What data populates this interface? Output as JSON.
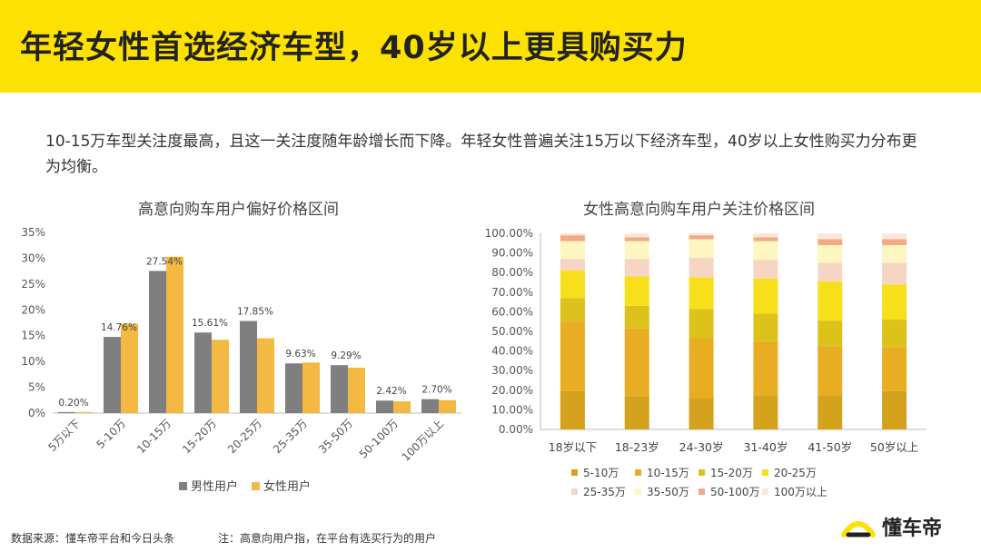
{
  "header": {
    "title": "年轻女性首选经济车型，40岁以上更具购买力"
  },
  "intro": "10-15万车型关注度最高，且这一关注度随年龄增长而下降。年轻女性普遍关注15万以下经济车型，40岁以上女性购买力分布更为均衡。",
  "footer": {
    "source": "数据来源：懂车帝平台和今日头条",
    "note": "注：高意向用户指，在平台有选买行为的用户"
  },
  "brand": {
    "name": "懂车帝"
  },
  "colors": {
    "male": "#7f7f7f",
    "female": "#f4b942",
    "stack": [
      "#d4a21c",
      "#e8ad22",
      "#dcc21a",
      "#f7df1c",
      "#f6d6c3",
      "#fef6c0",
      "#f2aa86",
      "#fce6da"
    ]
  },
  "chart_data": [
    {
      "type": "bar",
      "title": "高意向购车用户偏好价格区间",
      "categories": [
        "5万以下",
        "5-10万",
        "10-15万",
        "15-20万",
        "20-25万",
        "25-35万",
        "35-50万",
        "50-100万",
        "100万以上"
      ],
      "series": [
        {
          "name": "男性用户",
          "values": [
            0.2,
            14.76,
            27.54,
            15.61,
            17.85,
            9.63,
            9.29,
            2.42,
            2.7
          ],
          "labels": [
            "0.20%",
            "14.76%",
            "27.54%",
            "15.61%",
            "17.85%",
            "9.63%",
            "9.29%",
            "2.42%",
            "2.70%"
          ]
        },
        {
          "name": "女性用户",
          "values": [
            0.2,
            17.3,
            30.3,
            14.2,
            14.5,
            9.8,
            8.8,
            2.3,
            2.5
          ]
        }
      ],
      "yticks": [
        "0%",
        "5%",
        "10%",
        "15%",
        "20%",
        "25%",
        "30%",
        "35%"
      ],
      "ylim": [
        0,
        35
      ]
    },
    {
      "type": "bar",
      "stacked": true,
      "title": "女性高意向购车用户关注价格区间",
      "categories": [
        "18岁以下",
        "18-23岁",
        "24-30岁",
        "31-40岁",
        "41-50岁",
        "50岁以上"
      ],
      "series": [
        {
          "name": "5-10万",
          "values": [
            19.5,
            17,
            16,
            17.5,
            17.5,
            19.5
          ]
        },
        {
          "name": "10-15万",
          "values": [
            35.5,
            34.5,
            30.5,
            27.5,
            25,
            22.5
          ]
        },
        {
          "name": "15-20万",
          "values": [
            12,
            11.5,
            15,
            14,
            13,
            14
          ]
        },
        {
          "name": "20-25万",
          "values": [
            14,
            15,
            16,
            18,
            20,
            18
          ]
        },
        {
          "name": "25-35万",
          "values": [
            6,
            9,
            10,
            9.5,
            9.5,
            11
          ]
        },
        {
          "name": "35-50万",
          "values": [
            9,
            9,
            9.5,
            9.5,
            9,
            9
          ]
        },
        {
          "name": "50-100万",
          "values": [
            3,
            2,
            2,
            2,
            3,
            3
          ]
        },
        {
          "name": "100万以上",
          "values": [
            1,
            2,
            1,
            2,
            3,
            3
          ]
        }
      ],
      "yticks": [
        "0.00%",
        "10.00%",
        "20.00%",
        "30.00%",
        "40.00%",
        "50.00%",
        "60.00%",
        "70.00%",
        "80.00%",
        "90.00%",
        "100.00%"
      ],
      "ylim": [
        0,
        100
      ]
    }
  ]
}
